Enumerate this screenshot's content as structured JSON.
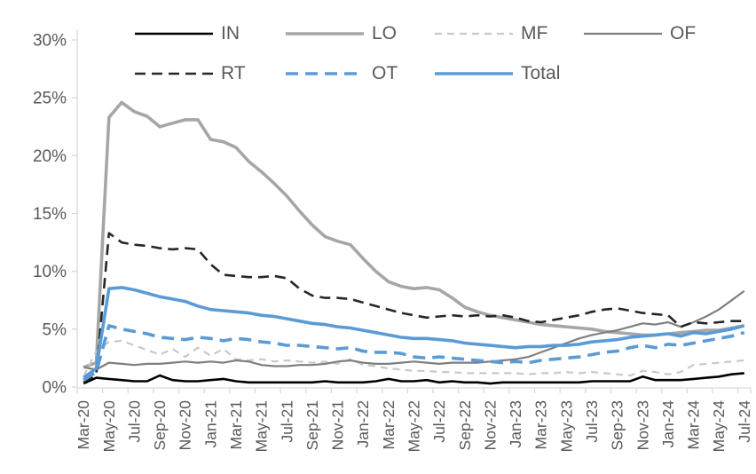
{
  "figure": {
    "background": "#ffffff"
  },
  "axes": {
    "text_color": "#595959",
    "line_color": "#d9d9d9",
    "y_tick_labels": [
      "0%",
      "5%",
      "10%",
      "15%",
      "20%",
      "25%",
      "30%"
    ],
    "y_tick_values": [
      0,
      5,
      10,
      15,
      20,
      25,
      30
    ],
    "x_tick_labels": [
      "Mar-20",
      "May-20",
      "Jul-20",
      "Sep-20",
      "Nov-20",
      "Jan-21",
      "Mar-21",
      "May-21",
      "Jul-21",
      "Sep-21",
      "Nov-21",
      "Jan-22",
      "Mar-22",
      "May-22",
      "Jul-22",
      "Sep-22",
      "Nov-22",
      "Jan-23",
      "Mar-23",
      "May-23",
      "Jul-23",
      "Sep-23",
      "Nov-23",
      "Jan-24",
      "Mar-24",
      "May-24",
      "Jul-24"
    ]
  },
  "legend": {
    "rows": [
      [
        "IN",
        "LO",
        "MF",
        "OF"
      ],
      [
        "RT",
        "OT",
        "Total"
      ]
    ]
  },
  "chart_data": {
    "type": "line",
    "title": "",
    "xlabel": "",
    "ylabel": "",
    "ylim": [
      0,
      30
    ],
    "y_tick_step": 5,
    "y_format": "percent",
    "grid": false,
    "legend_position": "top",
    "x_label_every": 2,
    "x": [
      "Mar-20",
      "Apr-20",
      "May-20",
      "Jun-20",
      "Jul-20",
      "Aug-20",
      "Sep-20",
      "Oct-20",
      "Nov-20",
      "Dec-20",
      "Jan-21",
      "Feb-21",
      "Mar-21",
      "Apr-21",
      "May-21",
      "Jun-21",
      "Jul-21",
      "Aug-21",
      "Sep-21",
      "Oct-21",
      "Nov-21",
      "Dec-21",
      "Jan-22",
      "Feb-22",
      "Mar-22",
      "Apr-22",
      "May-22",
      "Jun-22",
      "Jul-22",
      "Aug-22",
      "Sep-22",
      "Oct-22",
      "Nov-22",
      "Dec-22",
      "Jan-23",
      "Feb-23",
      "Mar-23",
      "Apr-23",
      "May-23",
      "Jun-23",
      "Jul-23",
      "Aug-23",
      "Sep-23",
      "Oct-23",
      "Nov-23",
      "Dec-23",
      "Jan-24",
      "Feb-24",
      "Mar-24",
      "Apr-24",
      "May-24",
      "Jun-24",
      "Jul-24"
    ],
    "series": [
      {
        "name": "IN",
        "color": "#000000",
        "line_style": "solid",
        "stroke_width": 2.6,
        "values": [
          0.3,
          0.8,
          0.7,
          0.6,
          0.5,
          0.5,
          1.0,
          0.6,
          0.5,
          0.5,
          0.6,
          0.7,
          0.5,
          0.4,
          0.4,
          0.4,
          0.4,
          0.4,
          0.4,
          0.5,
          0.4,
          0.4,
          0.4,
          0.5,
          0.7,
          0.5,
          0.5,
          0.6,
          0.4,
          0.5,
          0.4,
          0.4,
          0.3,
          0.4,
          0.4,
          0.4,
          0.4,
          0.4,
          0.4,
          0.4,
          0.5,
          0.5,
          0.5,
          0.5,
          0.9,
          0.6,
          0.6,
          0.6,
          0.7,
          0.8,
          0.9,
          1.1,
          1.2
        ]
      },
      {
        "name": "LO",
        "color": "#a6a6a6",
        "line_style": "solid",
        "stroke_width": 3.6,
        "values": [
          1.7,
          2.1,
          23.3,
          24.6,
          23.8,
          23.4,
          22.5,
          22.8,
          23.1,
          23.1,
          21.4,
          21.2,
          20.7,
          19.5,
          18.6,
          17.6,
          16.5,
          15.2,
          14.0,
          13.0,
          12.6,
          12.3,
          11.1,
          10.0,
          9.1,
          8.7,
          8.5,
          8.6,
          8.4,
          7.7,
          6.9,
          6.5,
          6.2,
          6.0,
          5.8,
          5.6,
          5.4,
          5.3,
          5.2,
          5.1,
          5.0,
          4.8,
          4.7,
          4.6,
          4.5,
          4.5,
          4.6,
          4.7,
          4.8,
          4.9,
          4.9,
          5.1,
          5.3
        ]
      },
      {
        "name": "MF",
        "color": "#c9c9c9",
        "line_style": "dashed",
        "stroke_width": 2.2,
        "values": [
          0.9,
          3.1,
          3.9,
          4.0,
          3.6,
          3.2,
          2.8,
          3.3,
          2.6,
          3.4,
          2.7,
          3.3,
          2.4,
          2.3,
          2.4,
          2.2,
          2.3,
          2.2,
          2.1,
          2.2,
          2.0,
          2.4,
          1.9,
          1.8,
          1.6,
          1.5,
          1.4,
          1.4,
          1.3,
          1.3,
          1.2,
          1.2,
          1.2,
          1.2,
          1.2,
          1.1,
          1.2,
          1.2,
          1.3,
          1.2,
          1.3,
          1.2,
          1.1,
          1.0,
          1.4,
          1.3,
          1.1,
          1.3,
          1.9,
          2.0,
          2.1,
          2.2,
          2.3
        ]
      },
      {
        "name": "OF",
        "color": "#7f7f7f",
        "line_style": "solid",
        "stroke_width": 2.2,
        "values": [
          1.7,
          1.5,
          2.1,
          2.0,
          1.9,
          2.0,
          2.0,
          2.1,
          2.2,
          2.1,
          2.2,
          2.1,
          2.3,
          2.2,
          1.9,
          1.8,
          1.8,
          1.9,
          1.9,
          2.0,
          2.2,
          2.3,
          2.1,
          2.0,
          2.0,
          2.1,
          2.2,
          2.1,
          2.0,
          2.1,
          2.1,
          2.1,
          2.2,
          2.3,
          2.4,
          2.6,
          3.0,
          3.4,
          3.8,
          4.2,
          4.5,
          4.7,
          4.9,
          5.2,
          5.5,
          5.4,
          5.6,
          5.2,
          5.6,
          6.1,
          6.7,
          7.5,
          8.3
        ]
      },
      {
        "name": "RT",
        "color": "#262626",
        "line_style": "dashed",
        "stroke_width": 2.6,
        "values": [
          0.4,
          1.1,
          13.3,
          12.5,
          12.3,
          12.2,
          12.0,
          11.9,
          12.0,
          11.9,
          10.6,
          9.7,
          9.6,
          9.5,
          9.5,
          9.6,
          9.4,
          8.5,
          7.9,
          7.7,
          7.7,
          7.6,
          7.3,
          7.0,
          6.7,
          6.4,
          6.2,
          6.0,
          6.1,
          6.2,
          6.1,
          6.2,
          6.1,
          6.2,
          6.0,
          5.7,
          5.6,
          5.8,
          6.0,
          6.2,
          6.5,
          6.7,
          6.8,
          6.6,
          6.4,
          6.3,
          6.2,
          5.2,
          5.6,
          5.5,
          5.6,
          5.7,
          5.7
        ]
      },
      {
        "name": "OT",
        "color": "#5b9bd5",
        "line_style": "dashed",
        "stroke_width": 3.6,
        "values": [
          0.6,
          1.3,
          5.3,
          5.0,
          4.8,
          4.6,
          4.3,
          4.2,
          4.1,
          4.3,
          4.2,
          4.0,
          4.2,
          4.1,
          3.9,
          3.8,
          3.6,
          3.6,
          3.5,
          3.4,
          3.3,
          3.4,
          3.1,
          3.0,
          3.0,
          2.9,
          2.6,
          2.5,
          2.6,
          2.5,
          2.4,
          2.3,
          2.2,
          2.1,
          2.2,
          2.1,
          2.3,
          2.4,
          2.5,
          2.6,
          2.8,
          3.0,
          3.1,
          3.4,
          3.6,
          3.4,
          3.7,
          3.6,
          3.8,
          4.0,
          4.2,
          4.4,
          4.7
        ]
      },
      {
        "name": "Total",
        "color": "#5b9bd5",
        "line_style": "solid",
        "stroke_width": 3.6,
        "values": [
          0.8,
          1.6,
          8.5,
          8.6,
          8.4,
          8.1,
          7.8,
          7.6,
          7.4,
          7.0,
          6.7,
          6.6,
          6.5,
          6.4,
          6.2,
          6.1,
          5.9,
          5.7,
          5.5,
          5.4,
          5.2,
          5.1,
          4.9,
          4.7,
          4.5,
          4.3,
          4.2,
          4.2,
          4.1,
          4.0,
          3.8,
          3.7,
          3.6,
          3.5,
          3.4,
          3.5,
          3.5,
          3.6,
          3.6,
          3.7,
          3.9,
          4.0,
          4.1,
          4.3,
          4.4,
          4.5,
          4.6,
          4.4,
          4.7,
          4.6,
          4.8,
          5.0,
          5.3
        ]
      }
    ]
  }
}
